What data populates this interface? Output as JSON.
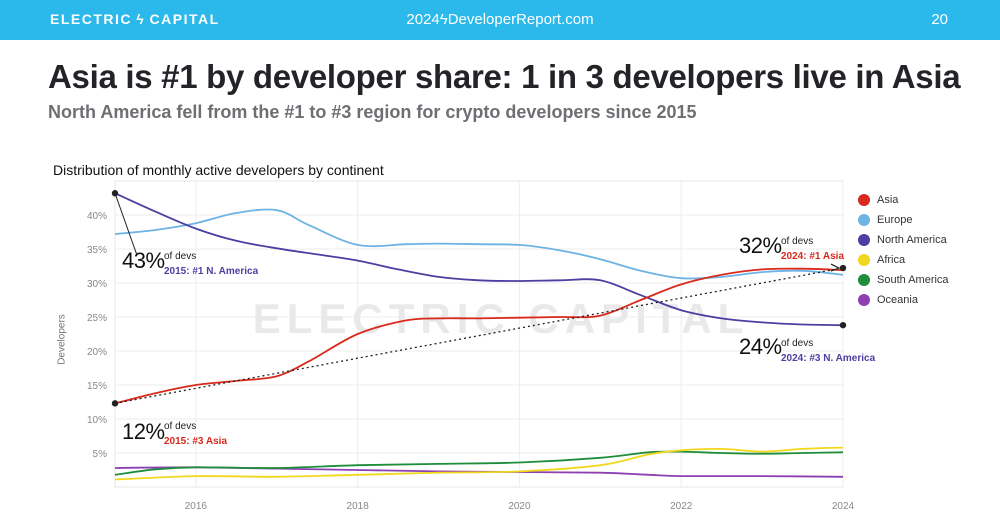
{
  "header": {
    "brand": "ELECTRIC ϟ CAPITAL",
    "site": "2024ϟDeveloperReport.com",
    "page_number": "20",
    "bar_color": "#2bb8ea"
  },
  "title": "Asia is #1 by developer share: 1 in 3 developers live in Asia",
  "subtitle": "North America fell from the #1 to #3 region for crypto developers since 2015",
  "chart_data": {
    "type": "line",
    "title": "Distribution of monthly active developers by continent",
    "xlabel": "",
    "ylabel": "Developers",
    "xlim": [
      2015,
      2024
    ],
    "ylim": [
      0,
      45
    ],
    "x_ticks": [
      2016,
      2018,
      2020,
      2022,
      2024
    ],
    "y_ticks": [
      5,
      10,
      15,
      20,
      25,
      30,
      35,
      40
    ],
    "y_tick_labels": [
      "5%",
      "10%",
      "15%",
      "20%",
      "25%",
      "30%",
      "35%",
      "40%"
    ],
    "grid": true,
    "legend_position": "right",
    "watermark": "ELECTRIC CAPITAL",
    "series": [
      {
        "name": "Asia",
        "color": "#d9291c",
        "points": [
          [
            2015,
            12.3
          ],
          [
            2015.5,
            13.8
          ],
          [
            2016,
            15
          ],
          [
            2016.5,
            15.6
          ],
          [
            2017,
            16.3
          ],
          [
            2017.4,
            18.5
          ],
          [
            2018,
            22.5
          ],
          [
            2018.6,
            24.5
          ],
          [
            2019,
            24.8
          ],
          [
            2019.5,
            24.8
          ],
          [
            2020,
            24.9
          ],
          [
            2020.5,
            25
          ],
          [
            2021,
            25.2
          ],
          [
            2021.5,
            27.5
          ],
          [
            2022,
            29.8
          ],
          [
            2022.5,
            31.2
          ],
          [
            2023,
            32
          ],
          [
            2023.5,
            32.1
          ],
          [
            2024,
            31.9
          ]
        ]
      },
      {
        "name": "Europe",
        "color": "#6db3e4",
        "points": [
          [
            2015,
            37.2
          ],
          [
            2015.5,
            37.8
          ],
          [
            2016,
            38.8
          ],
          [
            2016.5,
            40.3
          ],
          [
            2017,
            40.7
          ],
          [
            2017.4,
            38.5
          ],
          [
            2018,
            35.6
          ],
          [
            2018.6,
            35.7
          ],
          [
            2019,
            35.8
          ],
          [
            2019.5,
            35.7
          ],
          [
            2020,
            35.6
          ],
          [
            2020.5,
            34.8
          ],
          [
            2021,
            33.5
          ],
          [
            2021.5,
            31.8
          ],
          [
            2022,
            30.7
          ],
          [
            2022.5,
            30.9
          ],
          [
            2023,
            31.6
          ],
          [
            2023.5,
            31.8
          ],
          [
            2024,
            31.2
          ]
        ]
      },
      {
        "name": "North America",
        "color": "#4b3fa2",
        "points": [
          [
            2015,
            43.2
          ],
          [
            2015.5,
            40.5
          ],
          [
            2016,
            38
          ],
          [
            2016.5,
            36.2
          ],
          [
            2017,
            35.1
          ],
          [
            2017.5,
            34.2
          ],
          [
            2018,
            33.3
          ],
          [
            2018.5,
            32
          ],
          [
            2019,
            30.9
          ],
          [
            2019.5,
            30.4
          ],
          [
            2020,
            30.3
          ],
          [
            2020.5,
            30.4
          ],
          [
            2021,
            30.4
          ],
          [
            2021.5,
            28.2
          ],
          [
            2022,
            26
          ],
          [
            2022.5,
            24.8
          ],
          [
            2023,
            24.2
          ],
          [
            2023.5,
            23.9
          ],
          [
            2024,
            23.8
          ]
        ]
      },
      {
        "name": "Africa",
        "color": "#f2d81d",
        "points": [
          [
            2015,
            1.1
          ],
          [
            2016,
            1.6
          ],
          [
            2017,
            1.5
          ],
          [
            2018,
            1.8
          ],
          [
            2019,
            2.1
          ],
          [
            2020,
            2.3
          ],
          [
            2021,
            3.2
          ],
          [
            2021.6,
            4.8
          ],
          [
            2022,
            5.4
          ],
          [
            2022.5,
            5.6
          ],
          [
            2023,
            5.2
          ],
          [
            2023.5,
            5.6
          ],
          [
            2024,
            5.8
          ]
        ]
      },
      {
        "name": "South America",
        "color": "#1f8e3a",
        "points": [
          [
            2015,
            1.8
          ],
          [
            2015.5,
            2.6
          ],
          [
            2016,
            2.9
          ],
          [
            2017,
            2.8
          ],
          [
            2018,
            3.2
          ],
          [
            2019,
            3.4
          ],
          [
            2020,
            3.6
          ],
          [
            2021,
            4.3
          ],
          [
            2021.6,
            5.1
          ],
          [
            2022,
            5.2
          ],
          [
            2022.5,
            5
          ],
          [
            2023,
            4.9
          ],
          [
            2023.5,
            5
          ],
          [
            2024,
            5.1
          ]
        ]
      },
      {
        "name": "Oceania",
        "color": "#8e3fb3",
        "points": [
          [
            2015,
            2.8
          ],
          [
            2016,
            2.9
          ],
          [
            2017,
            2.7
          ],
          [
            2018,
            2.5
          ],
          [
            2019,
            2.3
          ],
          [
            2020,
            2.2
          ],
          [
            2021,
            2.1
          ],
          [
            2021.6,
            1.8
          ],
          [
            2022,
            1.6
          ],
          [
            2023,
            1.6
          ],
          [
            2024,
            1.5
          ]
        ]
      }
    ],
    "trend_line": {
      "from": [
        2015,
        12.3
      ],
      "to": [
        2024,
        32.2
      ]
    },
    "endpoints": [
      [
        2015,
        43.2
      ],
      [
        2015,
        12.3
      ],
      [
        2024,
        32.2
      ],
      [
        2024,
        23.8
      ]
    ],
    "annotations": [
      {
        "value": "43%",
        "sub": "of devs",
        "tag": "2015: #1 N. America",
        "tag_color": "#4b3fa2"
      },
      {
        "value": "12%",
        "sub": "of devs",
        "tag": "2015: #3 Asia",
        "tag_color": "#d9291c"
      },
      {
        "value": "32%",
        "sub": "of devs",
        "tag": "2024: #1 Asia",
        "tag_color": "#d9291c"
      },
      {
        "value": "24%",
        "sub": "of devs",
        "tag": "2024: #3 N. America",
        "tag_color": "#4b3fa2"
      }
    ]
  }
}
